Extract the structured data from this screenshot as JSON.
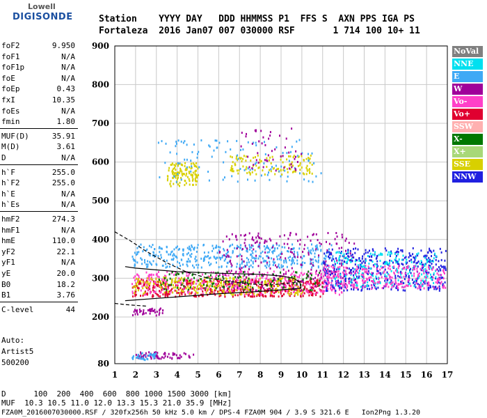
{
  "logo": {
    "line1": "Lowell",
    "line2": "DIGISONDE"
  },
  "header": {
    "row1": "Station    YYYY DAY   DDD HHMMSS P1  FFS S  AXN PPS IGA PS",
    "row2": "Fortaleza  2016 Jan07 007 030000 RSF       1 714 100 10+ 11"
  },
  "params": [
    {
      "name": "foF2",
      "value": "9.950"
    },
    {
      "name": "foF1",
      "value": "N/A"
    },
    {
      "name": "foF1p",
      "value": "N/A"
    },
    {
      "name": "foE",
      "value": "N/A"
    },
    {
      "name": "foEp",
      "value": "0.43"
    },
    {
      "name": "fxI",
      "value": "10.35"
    },
    {
      "name": "foEs",
      "value": "N/A"
    },
    {
      "name": "fmin",
      "value": "1.80"
    },
    {
      "name": "MUF(D)",
      "value": "35.91"
    },
    {
      "name": "M(D)",
      "value": "3.61"
    },
    {
      "name": "D",
      "value": "N/A"
    },
    {
      "name": "h`F",
      "value": "255.0"
    },
    {
      "name": "h`F2",
      "value": "255.0"
    },
    {
      "name": "h`E",
      "value": "N/A"
    },
    {
      "name": "h`Es",
      "value": "N/A"
    },
    {
      "name": "hmF2",
      "value": "274.3"
    },
    {
      "name": "hmF1",
      "value": "N/A"
    },
    {
      "name": "hmE",
      "value": "110.0"
    },
    {
      "name": "yF2",
      "value": "22.1"
    },
    {
      "name": "yF1",
      "value": "N/A"
    },
    {
      "name": "yE",
      "value": "20.0"
    },
    {
      "name": "B0",
      "value": "18.2"
    },
    {
      "name": "B1",
      "value": "3.76"
    },
    {
      "name": "C-level",
      "value": "44"
    }
  ],
  "auto": {
    "line1": "Auto:",
    "line2": "Artist5",
    "line3": "500200"
  },
  "footer": {
    "d_row": "D      100  200  400  600  800 1000 1500 3000 [km]",
    "muf_row": "MUF  10.3 10.5 11.0 12.0 13.3 15.3 21.0 35.9 [MHz]",
    "file_row": "FZA0M_2016007030000.RSF / 320fx256h 50 kHz 5.0 km / DPS-4 FZA0M 904 / 3.9 S 321.6 E   Ion2Png 1.3.20"
  },
  "legend": [
    {
      "label": "NoVal",
      "color": "#808080",
      "text_color": "#ffffff"
    },
    {
      "label": "NNE",
      "color": "#00e0f0",
      "text_color": "#ffffff"
    },
    {
      "label": "E",
      "color": "#3fa9f5",
      "text_color": "#ffffff"
    },
    {
      "label": "W",
      "color": "#a0009a",
      "text_color": "#ffffff"
    },
    {
      "label": "Vo-",
      "color": "#ff40c8",
      "text_color": "#ffffff"
    },
    {
      "label": "Vo+",
      "color": "#e00030",
      "text_color": "#ffffff"
    },
    {
      "label": "SSW",
      "color": "#ffb0b0",
      "text_color": "#ffffff"
    },
    {
      "label": "X-",
      "color": "#007800",
      "text_color": "#ffffff"
    },
    {
      "label": "X+",
      "color": "#a8d878",
      "text_color": "#ffffff"
    },
    {
      "label": "SSE",
      "color": "#d8d000",
      "text_color": "#ffffff"
    },
    {
      "label": "NNW",
      "color": "#2020e0",
      "text_color": "#ffffff"
    }
  ],
  "chart_data": {
    "type": "scatter",
    "x_ticks": [
      "1",
      "2",
      "3",
      "4",
      "5",
      "6",
      "7",
      "8",
      "9",
      "10",
      "11",
      "12",
      "13",
      "14",
      "15",
      "16",
      "17"
    ],
    "y_ticks": [
      "80",
      "200",
      "300",
      "400",
      "500",
      "600",
      "700",
      "800",
      "900"
    ],
    "xlim": [
      1,
      17
    ],
    "ylim": [
      80,
      900
    ],
    "grid": true,
    "legend_position": "right",
    "clusters": [
      {
        "color": "#3fa9f5",
        "fmin": 1.8,
        "fmax": 11.5,
        "hmin": 330,
        "hmax": 390,
        "n": 420
      },
      {
        "color": "#e00030",
        "fmin": 1.8,
        "fmax": 11.0,
        "hmin": 255,
        "hmax": 300,
        "n": 500
      },
      {
        "color": "#ff40c8",
        "fmin": 1.8,
        "fmax": 12.0,
        "hmin": 260,
        "hmax": 320,
        "n": 350
      },
      {
        "color": "#d8d000",
        "fmin": 1.8,
        "fmax": 10.0,
        "hmin": 260,
        "hmax": 305,
        "n": 250
      },
      {
        "color": "#a0009a",
        "fmin": 6.0,
        "fmax": 12.5,
        "hmin": 270,
        "hmax": 420,
        "n": 250
      },
      {
        "color": "#007800",
        "fmin": 3.0,
        "fmax": 11.0,
        "hmin": 270,
        "hmax": 320,
        "n": 120
      },
      {
        "color": "#2020e0",
        "fmin": 11.0,
        "fmax": 16.9,
        "hmin": 270,
        "hmax": 380,
        "n": 450
      },
      {
        "color": "#00e0f0",
        "fmin": 11.5,
        "fmax": 16.5,
        "hmin": 280,
        "hmax": 370,
        "n": 200
      },
      {
        "color": "#ff40c8",
        "fmin": 11.0,
        "fmax": 16.9,
        "hmin": 275,
        "hmax": 335,
        "n": 250
      },
      {
        "color": "#d8d000",
        "fmin": 3.5,
        "fmax": 5.0,
        "hmin": 540,
        "hmax": 600,
        "n": 120
      },
      {
        "color": "#d8d000",
        "fmin": 6.5,
        "fmax": 10.5,
        "hmin": 570,
        "hmax": 620,
        "n": 120
      },
      {
        "color": "#3fa9f5",
        "fmin": 3.0,
        "fmax": 11.0,
        "hmin": 550,
        "hmax": 660,
        "n": 110
      },
      {
        "color": "#a0009a",
        "fmin": 7.0,
        "fmax": 10.0,
        "hmin": 580,
        "hmax": 690,
        "n": 50
      },
      {
        "color": "#a0009a",
        "fmin": 1.8,
        "fmax": 3.3,
        "hmin": 205,
        "hmax": 225,
        "n": 40
      },
      {
        "color": "#a0009a",
        "fmin": 2.0,
        "fmax": 4.8,
        "hmin": 95,
        "hmax": 112,
        "n": 70
      },
      {
        "color": "#3fa9f5",
        "fmin": 1.8,
        "fmax": 3.0,
        "hmin": 92,
        "hmax": 112,
        "n": 40
      }
    ],
    "curves": [
      {
        "style": "dashed",
        "points": [
          [
            1,
            420
          ],
          [
            1.8,
            395
          ],
          [
            2.5,
            370
          ],
          [
            3.5,
            340
          ],
          [
            4.5,
            315
          ],
          [
            5.5,
            300
          ],
          [
            6.5,
            292
          ],
          [
            7.5,
            285
          ],
          [
            8.5,
            283
          ],
          [
            9.5,
            288
          ],
          [
            10,
            292
          ]
        ]
      },
      {
        "style": "dashed",
        "points": [
          [
            1,
            235
          ],
          [
            1.5,
            232
          ],
          [
            2,
            230
          ],
          [
            2.5,
            228
          ]
        ]
      },
      {
        "style": "solid",
        "points": [
          [
            1.5,
            242
          ],
          [
            2,
            244
          ],
          [
            3,
            248
          ],
          [
            4,
            252
          ],
          [
            5,
            256
          ],
          [
            6,
            260
          ],
          [
            7,
            263
          ],
          [
            8,
            266
          ],
          [
            9,
            270
          ],
          [
            9.95,
            274.3
          ],
          [
            9.95,
            278
          ],
          [
            9.9,
            290
          ],
          [
            9.6,
            300
          ],
          [
            9,
            306
          ],
          [
            8,
            310
          ],
          [
            6,
            313
          ],
          [
            4,
            317
          ],
          [
            2,
            326
          ],
          [
            1.5,
            330
          ]
        ]
      }
    ]
  }
}
